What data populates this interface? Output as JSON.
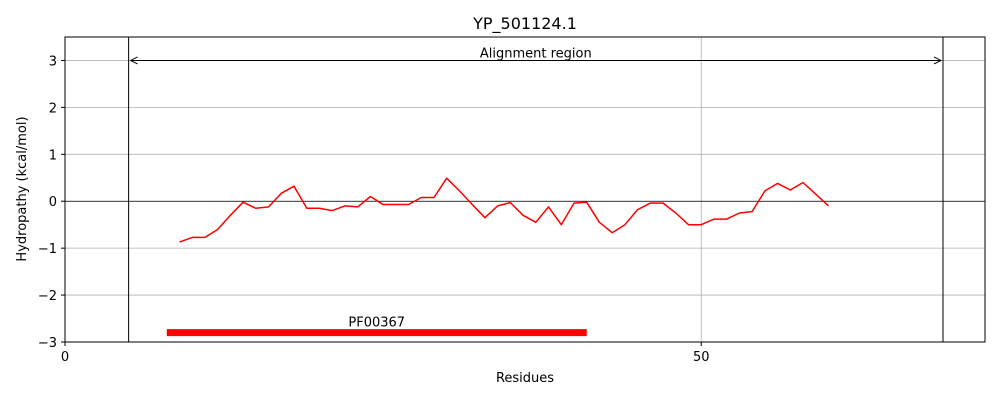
{
  "chart_data": {
    "type": "line",
    "title": "YP_501124.1",
    "xlabel": "Residues",
    "ylabel": "Hydropathy (kcal/mol)",
    "xlim": [
      0,
      72.3
    ],
    "ylim": [
      -3,
      3.5
    ],
    "x_ticks": [
      0,
      50
    ],
    "x_tick_labels": [
      "0",
      "50"
    ],
    "y_ticks": [
      -3,
      -2,
      -1,
      0,
      1,
      2,
      3
    ],
    "y_tick_labels": [
      "−3",
      "−2",
      "−1",
      "0",
      "1",
      "2",
      "3"
    ],
    "grid": true,
    "zero_line": true,
    "series": [
      {
        "color": "#ff0000",
        "x": [
          9,
          10,
          11,
          12,
          13,
          14,
          15,
          16,
          17,
          18,
          19,
          20,
          21,
          22,
          23,
          24,
          25,
          26,
          27,
          28,
          29,
          30,
          31,
          32,
          33,
          34,
          35,
          36,
          37,
          38,
          39,
          40,
          41,
          42,
          43,
          44,
          45,
          46,
          47,
          48,
          49,
          50,
          51,
          52,
          53,
          54,
          55,
          56,
          57,
          58,
          59,
          60
        ],
        "y": [
          -0.87,
          -0.77,
          -0.77,
          -0.6,
          -0.3,
          -0.02,
          -0.15,
          -0.12,
          0.17,
          0.32,
          -0.15,
          -0.15,
          -0.2,
          -0.1,
          -0.12,
          0.1,
          -0.07,
          -0.07,
          -0.07,
          0.08,
          0.08,
          0.49,
          0.22,
          -0.07,
          -0.35,
          -0.1,
          -0.03,
          -0.3,
          -0.45,
          -0.12,
          -0.5,
          -0.04,
          -0.02,
          -0.45,
          -0.67,
          -0.5,
          -0.18,
          -0.04,
          -0.04,
          -0.25,
          -0.5,
          -0.5,
          -0.38,
          -0.38,
          -0.25,
          -0.22,
          0.22,
          0.38,
          0.24,
          0.4,
          0.15,
          -0.1
        ]
      }
    ],
    "alignment_region": {
      "label": "Alignment region",
      "start": 5,
      "end": 69,
      "y": 3
    },
    "domain": {
      "label": "PF00367",
      "start": 8,
      "end": 41,
      "color": "#ff0000"
    }
  }
}
